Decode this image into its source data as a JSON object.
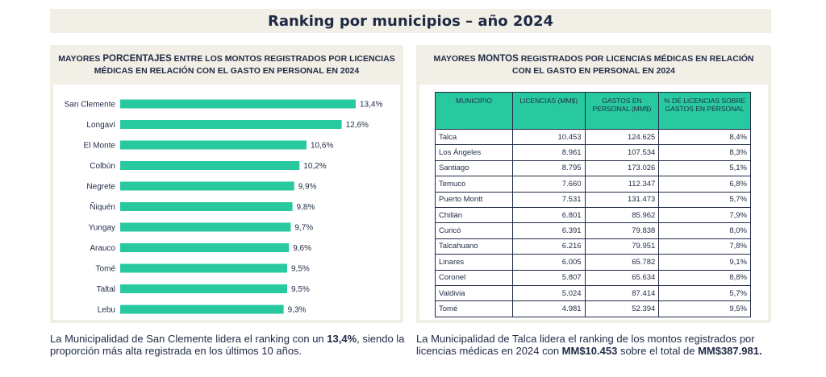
{
  "title": "Ranking por municipios – año 2024",
  "left_panel": {
    "header_pre": "MAYORES ",
    "header_highlight": "PORCENTAJES",
    "header_post": " ENTRE LOS MONTOS REGISTRADOS POR LICENCIAS MÉDICAS EN RELACIÓN CON EL GASTO EN PERSONAL EN 2024"
  },
  "right_panel": {
    "header_pre": "MAYORES ",
    "header_highlight": "MONTOS",
    "header_post": " REGISTRADOS POR LICENCIAS MÉDICAS EN RELACIÓN CON EL GASTO EN PERSONAL EN 2024"
  },
  "chart_data": {
    "type": "bar",
    "orientation": "horizontal",
    "categories": [
      "San Clemente",
      "Longaví",
      "El Monte",
      "Colbún",
      "Negrete",
      "Ñiquén",
      "Yungay",
      "Arauco",
      "Tomé",
      "Taltal",
      "Lebu"
    ],
    "values": [
      13.4,
      12.6,
      10.6,
      10.2,
      9.9,
      9.8,
      9.7,
      9.6,
      9.5,
      9.5,
      9.3
    ],
    "labels": [
      "13,4%",
      "12,6%",
      "10,6%",
      "10,2%",
      "9,9%",
      "9,8%",
      "9,7%",
      "9,6%",
      "9,5%",
      "9,5%",
      "9,3%"
    ],
    "bar_color": "#29c9a0",
    "grid": false
  },
  "table": {
    "headers": [
      "MUNICIPIO",
      "LICENCIAS (MM$)",
      "GASTOS EN PERSONAL (MM$)",
      "% DE LICENCIAS SOBRE GASTOS EN PERSONAL"
    ],
    "rows": [
      [
        "Talca",
        "10.453",
        "124.625",
        "8,4%"
      ],
      [
        "Los Ángeles",
        "8.961",
        "107.534",
        "8,3%"
      ],
      [
        "Santiago",
        "8.795",
        "173.026",
        "5,1%"
      ],
      [
        "Temuco",
        "7.660",
        "112.347",
        "6,8%"
      ],
      [
        "Puerto Montt",
        "7.531",
        "131.473",
        "5,7%"
      ],
      [
        "Chillán",
        "6.801",
        "85.962",
        "7,9%"
      ],
      [
        "Curicó",
        "6.391",
        "79.838",
        "8,0%"
      ],
      [
        "Talcahuano",
        "6.216",
        "79.951",
        "7,8%"
      ],
      [
        "Linares",
        "6.005",
        "65.782",
        "9,1%"
      ],
      [
        "Coronel",
        "5.807",
        "65.634",
        "8,8%"
      ],
      [
        "Valdivia",
        "5.024",
        "87.414",
        "5,7%"
      ],
      [
        "Tomé",
        "4.981",
        "52.394",
        "9,5%"
      ]
    ]
  },
  "captions": {
    "left_pre": "La Municipalidad de San Clemente lidera el ranking con un ",
    "left_bold": "13,4%",
    "left_post": ", siendo la proporción más alta registrada en los últimos 10 años.",
    "right_pre": "La Municipalidad de Talca lidera el ranking de los montos registrados por licencias médicas en 2024 con ",
    "right_bold1": "MM$10.453",
    "right_mid": " sobre el total de ",
    "right_bold2": "MM$387.981."
  },
  "colors": {
    "accent": "#29c9a0",
    "panel_bg": "#f1efe6",
    "text": "#1f2a44"
  }
}
